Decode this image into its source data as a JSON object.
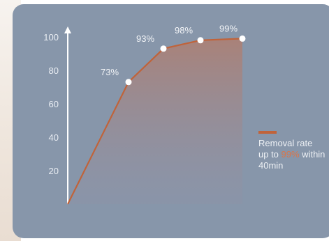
{
  "chart_data": {
    "type": "area",
    "x": [
      0,
      1,
      2,
      3,
      4
    ],
    "y": [
      0,
      73,
      93,
      98,
      99
    ],
    "data_labels": [
      "",
      "73%",
      "93%",
      "98%",
      "99%"
    ],
    "y_ticks": [
      "20",
      "40",
      "60",
      "80",
      "100"
    ],
    "y_tick_values": [
      20,
      40,
      60,
      80,
      100
    ],
    "ylim": [
      0,
      105
    ],
    "grid": false,
    "legend": {
      "placement": "right",
      "line1": "Removal rate",
      "line2_prefix": "up to ",
      "line2_highlight": "99%",
      "line2_suffix": " within",
      "line3": "40min"
    }
  },
  "colors": {
    "panel_bg": "#8796aa",
    "line": "#c0633a",
    "highlight": "#d8764b",
    "axis": "#ffffff"
  }
}
